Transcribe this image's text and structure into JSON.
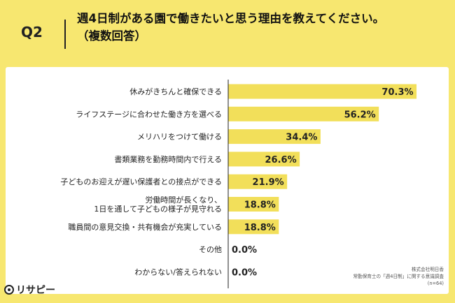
{
  "header": {
    "question_label": "Q2",
    "title_line1": "週4日制がある園で働きたいと思う理由を教えてください。",
    "title_line2": "（複数回答）"
  },
  "credit": {
    "line1": "株式会社明日香",
    "line2": "常勤保育士の「週4日制」に関する意識調査",
    "line3": "(n=64)"
  },
  "logo": {
    "text": "リサピー",
    "icon": "logo-mark-icon"
  },
  "colors": {
    "background": "#f7e770",
    "bar": "#f2df5a",
    "card": "#ffffff"
  },
  "chart_data": {
    "type": "bar",
    "orientation": "horizontal",
    "categories": [
      [
        "休みがきちんと確保できる"
      ],
      [
        "ライフステージに合わせた働き方を選べる"
      ],
      [
        "メリハリをつけて働ける"
      ],
      [
        "書類業務を勤務時間内で行える"
      ],
      [
        "子どものお迎えが遅い保護者との接点ができる"
      ],
      [
        "労働時間が長くなり、",
        "1日を通して子どもの様子が見守れる"
      ],
      [
        "職員間の意見交換・共有機会が充実している"
      ],
      [
        "その他"
      ],
      [
        "わからない/答えられない"
      ]
    ],
    "values": [
      70.3,
      56.2,
      34.4,
      26.6,
      21.9,
      18.8,
      18.8,
      0.0,
      0.0
    ],
    "value_labels": [
      "70.3%",
      "56.2%",
      "34.4%",
      "26.6%",
      "21.9%",
      "18.8%",
      "18.8%",
      "0.0%",
      "0.0%"
    ],
    "xlim": [
      0,
      100
    ]
  }
}
